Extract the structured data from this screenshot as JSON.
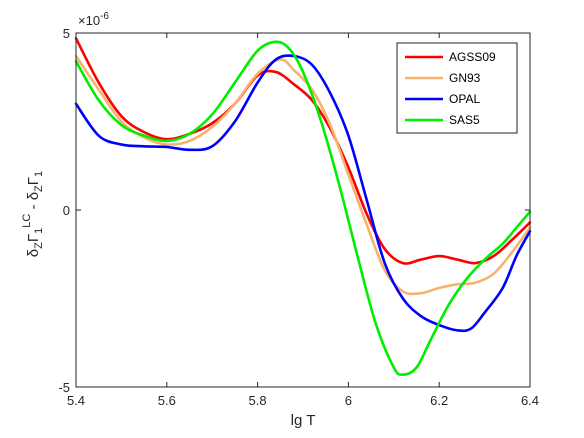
{
  "chart_data": {
    "type": "line",
    "xlabel": "lg T",
    "ylabel_parts": {
      "base": "δ",
      "sub1": "Z",
      "gamma": "Γ",
      "sub2": "1",
      "sup": "LC",
      "minus": " - ",
      "base2": "δ",
      "sub3": "Z",
      "gamma2": "Γ",
      "sub4": "1"
    },
    "exponent_label": "×10",
    "exponent_power": "-6",
    "xlim": [
      5.4,
      6.4
    ],
    "ylim": [
      -5,
      5
    ],
    "x_ticks": [
      5.4,
      5.6,
      5.8,
      6.0,
      6.2,
      6.4
    ],
    "x_tick_labels": [
      "5.4",
      "5.6",
      "5.8",
      "6",
      "6.2",
      "6.4"
    ],
    "y_ticks": [
      -5,
      0,
      5
    ],
    "y_tick_labels": [
      "-5",
      "0",
      "5"
    ],
    "grid": false,
    "legend_position": "top-right",
    "series": [
      {
        "name": "AGSS09",
        "color": "#ff0000",
        "points": [
          [
            5.4,
            4.85
          ],
          [
            5.45,
            3.6
          ],
          [
            5.5,
            2.65
          ],
          [
            5.55,
            2.2
          ],
          [
            5.6,
            2.0
          ],
          [
            5.65,
            2.15
          ],
          [
            5.7,
            2.45
          ],
          [
            5.75,
            3.0
          ],
          [
            5.8,
            3.8
          ],
          [
            5.84,
            3.9
          ],
          [
            5.88,
            3.55
          ],
          [
            5.92,
            3.1
          ],
          [
            5.96,
            2.3
          ],
          [
            6.0,
            1.2
          ],
          [
            6.04,
            -0.1
          ],
          [
            6.08,
            -1.1
          ],
          [
            6.12,
            -1.5
          ],
          [
            6.16,
            -1.4
          ],
          [
            6.2,
            -1.3
          ],
          [
            6.24,
            -1.4
          ],
          [
            6.28,
            -1.5
          ],
          [
            6.32,
            -1.3
          ],
          [
            6.36,
            -0.85
          ],
          [
            6.4,
            -0.35
          ]
        ]
      },
      {
        "name": "GN93",
        "color": "#f7b26d",
        "points": [
          [
            5.4,
            4.35
          ],
          [
            5.45,
            3.4
          ],
          [
            5.5,
            2.5
          ],
          [
            5.55,
            2.05
          ],
          [
            5.6,
            1.85
          ],
          [
            5.65,
            1.95
          ],
          [
            5.7,
            2.35
          ],
          [
            5.75,
            3.0
          ],
          [
            5.8,
            3.85
          ],
          [
            5.85,
            4.25
          ],
          [
            5.88,
            3.95
          ],
          [
            5.92,
            3.4
          ],
          [
            5.96,
            2.4
          ],
          [
            6.0,
            1.0
          ],
          [
            6.04,
            -0.4
          ],
          [
            6.08,
            -1.7
          ],
          [
            6.12,
            -2.3
          ],
          [
            6.16,
            -2.35
          ],
          [
            6.2,
            -2.2
          ],
          [
            6.24,
            -2.1
          ],
          [
            6.28,
            -2.05
          ],
          [
            6.32,
            -1.8
          ],
          [
            6.36,
            -1.2
          ],
          [
            6.4,
            -0.5
          ]
        ]
      },
      {
        "name": "OPAL",
        "color": "#0000ff",
        "points": [
          [
            5.4,
            3.0
          ],
          [
            5.45,
            2.1
          ],
          [
            5.5,
            1.85
          ],
          [
            5.55,
            1.8
          ],
          [
            5.6,
            1.78
          ],
          [
            5.65,
            1.7
          ],
          [
            5.7,
            1.8
          ],
          [
            5.75,
            2.5
          ],
          [
            5.8,
            3.6
          ],
          [
            5.84,
            4.25
          ],
          [
            5.88,
            4.35
          ],
          [
            5.92,
            4.1
          ],
          [
            5.96,
            3.3
          ],
          [
            6.0,
            2.1
          ],
          [
            6.04,
            0.3
          ],
          [
            6.08,
            -1.5
          ],
          [
            6.12,
            -2.5
          ],
          [
            6.16,
            -3.0
          ],
          [
            6.2,
            -3.25
          ],
          [
            6.24,
            -3.4
          ],
          [
            6.27,
            -3.35
          ],
          [
            6.3,
            -2.9
          ],
          [
            6.34,
            -2.2
          ],
          [
            6.37,
            -1.3
          ],
          [
            6.4,
            -0.6
          ]
        ]
      },
      {
        "name": "SAS5",
        "color": "#00ee00",
        "points": [
          [
            5.4,
            4.2
          ],
          [
            5.45,
            3.1
          ],
          [
            5.5,
            2.4
          ],
          [
            5.55,
            2.1
          ],
          [
            5.6,
            1.95
          ],
          [
            5.65,
            2.15
          ],
          [
            5.7,
            2.7
          ],
          [
            5.75,
            3.6
          ],
          [
            5.8,
            4.5
          ],
          [
            5.84,
            4.75
          ],
          [
            5.87,
            4.55
          ],
          [
            5.9,
            3.9
          ],
          [
            5.94,
            2.5
          ],
          [
            5.98,
            0.7
          ],
          [
            6.02,
            -1.3
          ],
          [
            6.06,
            -3.2
          ],
          [
            6.1,
            -4.45
          ],
          [
            6.12,
            -4.65
          ],
          [
            6.15,
            -4.45
          ],
          [
            6.18,
            -3.7
          ],
          [
            6.22,
            -2.7
          ],
          [
            6.26,
            -1.95
          ],
          [
            6.3,
            -1.4
          ],
          [
            6.34,
            -0.95
          ],
          [
            6.37,
            -0.5
          ],
          [
            6.4,
            -0.05
          ]
        ]
      }
    ]
  }
}
